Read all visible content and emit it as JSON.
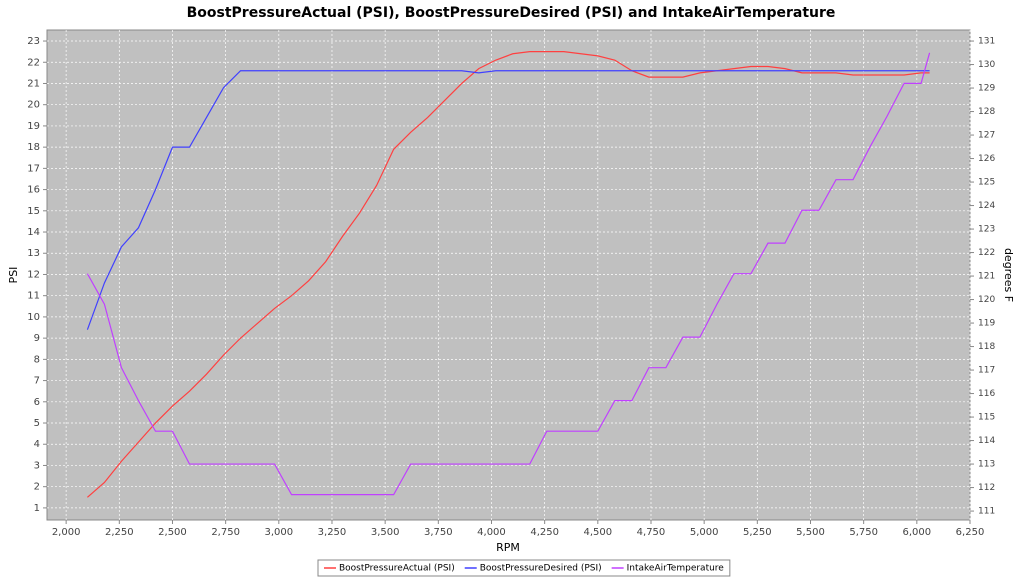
{
  "chart_data": {
    "type": "line",
    "title": "BoostPressureActual (PSI), BoostPressureDesired (PSI) and IntakeAirTemperature",
    "x_label": "RPM",
    "y_label": "PSI",
    "y2_label": "degrees F",
    "x": [
      2100,
      2180,
      2260,
      2340,
      2420,
      2500,
      2580,
      2660,
      2740,
      2820,
      2900,
      2980,
      3060,
      3140,
      3220,
      3300,
      3380,
      3460,
      3540,
      3620,
      3700,
      3780,
      3860,
      3940,
      4020,
      4100,
      4180,
      4260,
      4340,
      4420,
      4500,
      4580,
      4660,
      4740,
      4820,
      4900,
      4980,
      5060,
      5140,
      5220,
      5300,
      5380,
      5460,
      5540,
      5620,
      5700,
      5780,
      5860,
      5940,
      6020,
      6060
    ],
    "series": [
      {
        "name": "BoostPressureActual (PSI)",
        "color": "#ff4040",
        "values": [
          1.5,
          2.2,
          3.2,
          4.1,
          5.0,
          5.8,
          6.5,
          7.3,
          8.2,
          9.0,
          9.7,
          10.4,
          11.0,
          11.7,
          12.6,
          13.8,
          14.9,
          16.2,
          17.9,
          18.7,
          19.4,
          20.2,
          21.0,
          21.7,
          22.1,
          22.4,
          22.5,
          22.5,
          22.5,
          22.4,
          22.3,
          22.1,
          21.6,
          21.3,
          21.3,
          21.3,
          21.5,
          21.6,
          21.7,
          21.8,
          21.8,
          21.7,
          21.5,
          21.5,
          21.5,
          21.4,
          21.4,
          21.4,
          21.4,
          21.5,
          21.5
        ]
      },
      {
        "name": "BoostPressureDesired (PSI)",
        "color": "#4040ff",
        "values": [
          9.4,
          11.6,
          13.3,
          14.2,
          16.0,
          18.0,
          18.0,
          19.4,
          20.8,
          21.6,
          21.6,
          21.6,
          21.6,
          21.6,
          21.6,
          21.6,
          21.6,
          21.6,
          21.6,
          21.6,
          21.6,
          21.6,
          21.6,
          21.5,
          21.6,
          21.6,
          21.6,
          21.6,
          21.6,
          21.6,
          21.6,
          21.6,
          21.6,
          21.6,
          21.6,
          21.6,
          21.6,
          21.6,
          21.6,
          21.6,
          21.6,
          21.6,
          21.6,
          21.6,
          21.6,
          21.6,
          21.6,
          21.6,
          21.6,
          21.6,
          21.6
        ]
      },
      {
        "name": "IntakeAirTemperature",
        "color": "#c040ff",
        "axis": "y2",
        "values": [
          121.1,
          119.8,
          117.1,
          115.7,
          114.4,
          114.4,
          113.0,
          113.0,
          113.0,
          113.0,
          113.0,
          113.0,
          111.7,
          111.7,
          111.7,
          111.7,
          111.7,
          111.7,
          111.7,
          113.0,
          113.0,
          113.0,
          113.0,
          113.0,
          113.0,
          113.0,
          113.0,
          114.4,
          114.4,
          114.4,
          114.4,
          115.7,
          115.7,
          117.1,
          117.1,
          118.4,
          118.4,
          119.8,
          121.1,
          121.1,
          122.4,
          122.4,
          123.8,
          123.8,
          125.1,
          125.1,
          126.5,
          127.8,
          129.2,
          129.2,
          130.5
        ]
      }
    ],
    "xlim": [
      1910,
      6250
    ],
    "xticks": [
      {
        "value": 2000,
        "label": "2,000"
      },
      {
        "value": 2250,
        "label": "2,250"
      },
      {
        "value": 2500,
        "label": "2,500"
      },
      {
        "value": 2750,
        "label": "2,750"
      },
      {
        "value": 3000,
        "label": "3,000"
      },
      {
        "value": 3250,
        "label": "3,250"
      },
      {
        "value": 3500,
        "label": "3,500"
      },
      {
        "value": 3750,
        "label": "3,750"
      },
      {
        "value": 4000,
        "label": "4,000"
      },
      {
        "value": 4250,
        "label": "4,250"
      },
      {
        "value": 4500,
        "label": "4,500"
      },
      {
        "value": 4750,
        "label": "4,750"
      },
      {
        "value": 5000,
        "label": "5,000"
      },
      {
        "value": 5250,
        "label": "5,250"
      },
      {
        "value": 5500,
        "label": "5,500"
      },
      {
        "value": 5750,
        "label": "5,750"
      },
      {
        "value": 6000,
        "label": "6,000"
      },
      {
        "value": 6250,
        "label": "6,250"
      }
    ],
    "ylim": [
      0.43,
      23.52
    ],
    "yticks": [
      1,
      2,
      3,
      4,
      5,
      6,
      7,
      8,
      9,
      10,
      11,
      12,
      13,
      14,
      15,
      16,
      17,
      18,
      19,
      20,
      21,
      22,
      23
    ],
    "y2lim": [
      110.62,
      131.47
    ],
    "y2ticks": [
      111,
      112,
      113,
      114,
      115,
      116,
      117,
      118,
      119,
      120,
      121,
      122,
      123,
      124,
      125,
      126,
      127,
      128,
      129,
      130,
      131
    ],
    "grid": true,
    "legend": "bottom"
  }
}
